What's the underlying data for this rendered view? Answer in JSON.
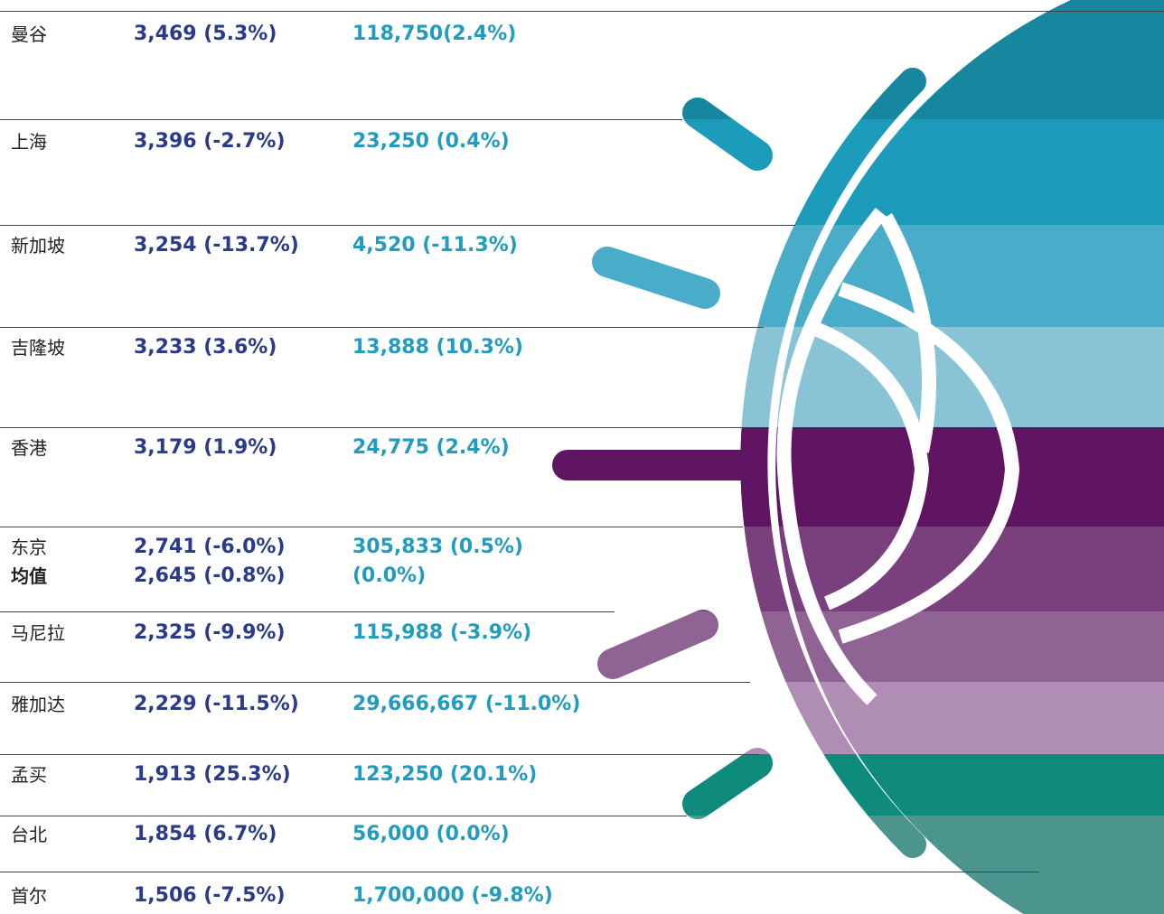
{
  "table": {
    "rows": [
      {
        "city": "曼谷",
        "value1": "3,469 (5.3%)",
        "value2": "118,750(2.4%)"
      },
      {
        "city": "上海",
        "value1": "3,396 (-2.7%)",
        "value2": "23,250 (0.4%)"
      },
      {
        "city": "新加坡",
        "value1": "3,254 (-13.7%)",
        "value2": "4,520 (-11.3%)"
      },
      {
        "city": "吉隆坡",
        "value1": "3,233 (3.6%)",
        "value2": "13,888 (10.3%)"
      },
      {
        "city": "香港",
        "value1": "3,179 (1.9%)",
        "value2": "24,775 (2.4%)"
      },
      {
        "city": "东京",
        "value1": "2,741 (-6.0%)",
        "value2": "305,833 (0.5%)"
      },
      {
        "city": "马尼拉",
        "value1": "2,325 (-9.9%)",
        "value2": "115,988 (-3.9%)"
      },
      {
        "city": "雅加达",
        "value1": "2,229 (-11.5%)",
        "value2": "29,666,667 (-11.0%)"
      },
      {
        "city": "孟买",
        "value1": "1,913 (25.3%)",
        "value2": "123,250 (20.1%)"
      },
      {
        "city": "台北",
        "value1": "1,854 (6.7%)",
        "value2": "56,000 (0.0%)"
      },
      {
        "city": "首尔",
        "value1": "1,506 (-7.5%)",
        "value2": "1,700,000 (-9.8%)"
      }
    ],
    "average": {
      "label": "均值",
      "value1": "2,645 (-0.8%)",
      "value2": "(0.0%)"
    }
  }
}
